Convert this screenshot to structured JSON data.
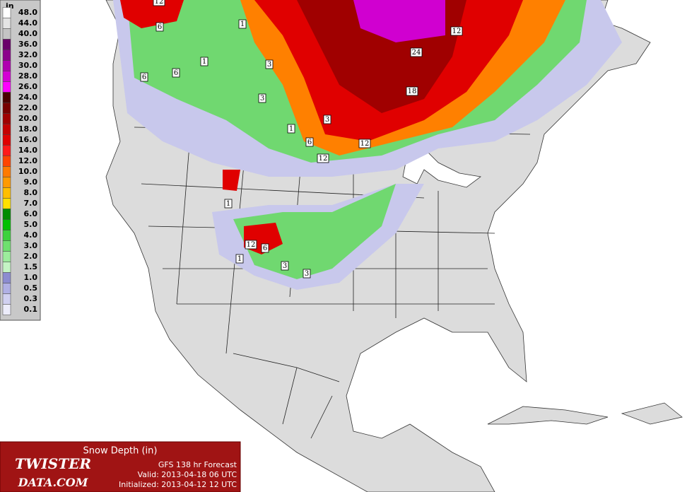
{
  "legend": {
    "unit": "in",
    "items": [
      {
        "label": "48.0",
        "color": "#ffffff"
      },
      {
        "label": "44.0",
        "color": "#e4e4e4"
      },
      {
        "label": "40.0",
        "color": "#c4c4c4"
      },
      {
        "label": "36.0",
        "color": "#6a006a"
      },
      {
        "label": "32.0",
        "color": "#8c008c"
      },
      {
        "label": "30.0",
        "color": "#b000b0"
      },
      {
        "label": "28.0",
        "color": "#d400d4"
      },
      {
        "label": "26.0",
        "color": "#ff00ff"
      },
      {
        "label": "24.0",
        "color": "#4a0000"
      },
      {
        "label": "22.0",
        "color": "#760000"
      },
      {
        "label": "20.0",
        "color": "#a00000"
      },
      {
        "label": "18.0",
        "color": "#c40000"
      },
      {
        "label": "16.0",
        "color": "#e00000"
      },
      {
        "label": "14.0",
        "color": "#ff1a1a"
      },
      {
        "label": "12.0",
        "color": "#ff4400"
      },
      {
        "label": "10.0",
        "color": "#ff7a00"
      },
      {
        "label": "9.0",
        "color": "#ff9a00"
      },
      {
        "label": "8.0",
        "color": "#ffbe00"
      },
      {
        "label": "7.0",
        "color": "#ffe000"
      },
      {
        "label": "6.0",
        "color": "#008c00"
      },
      {
        "label": "5.0",
        "color": "#00c000"
      },
      {
        "label": "4.0",
        "color": "#3cd23c"
      },
      {
        "label": "3.0",
        "color": "#6ee06e"
      },
      {
        "label": "2.0",
        "color": "#9cec9c"
      },
      {
        "label": "1.5",
        "color": "#c4f4c4"
      },
      {
        "label": "1.0",
        "color": "#8c8cd0"
      },
      {
        "label": "0.5",
        "color": "#b0b0e4"
      },
      {
        "label": "0.3",
        "color": "#d0d0f0"
      },
      {
        "label": "0.1",
        "color": "#ececfa"
      }
    ]
  },
  "contour_labels": [
    "12",
    "6",
    "1",
    "12",
    "24",
    "1",
    "3",
    "6",
    "6",
    "18",
    "3",
    "3",
    "1",
    "6",
    "12",
    "12",
    "1",
    "12",
    "6",
    "1",
    "3",
    "3"
  ],
  "panel": {
    "title": "Snow Depth (in)",
    "logo_top": "TWISTER",
    "logo_bottom": "DATA.COM",
    "model": "GFS 138 hr Forecast",
    "valid": "Valid: 2013-04-18 06 UTC",
    "initialized": "Initialized: 2013-04-12 12 UTC"
  }
}
